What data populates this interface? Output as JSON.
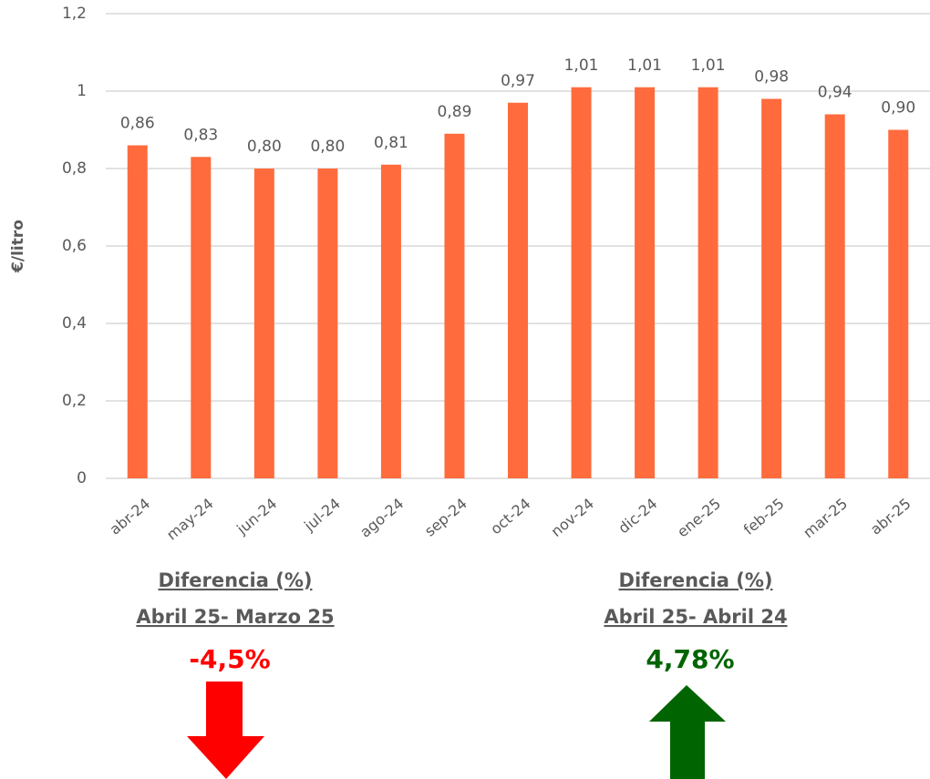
{
  "chart_data": {
    "type": "bar",
    "y_label": "€/litro",
    "categories": [
      "abr-24",
      "may-24",
      "jun-24",
      "jul-24",
      "ago-24",
      "sep-24",
      "oct-24",
      "nov-24",
      "dic-24",
      "ene-25",
      "feb-25",
      "mar-25",
      "abr-25"
    ],
    "values": [
      0.86,
      0.83,
      0.8,
      0.8,
      0.81,
      0.89,
      0.97,
      1.01,
      1.01,
      1.01,
      0.98,
      0.94,
      0.9
    ],
    "value_labels": [
      "0,86",
      "0,83",
      "0,80",
      "0,80",
      "0,81",
      "0,89",
      "0,97",
      "1,01",
      "1,01",
      "1,01",
      "0,98",
      "0,94",
      "0,90"
    ],
    "color": "#ff6b3d",
    "ylim": [
      0,
      1.2
    ],
    "yticks": [
      0,
      {
        "value": 0.2,
        "label": "0,2"
      },
      {
        "value": 0.4,
        "label": "0,4"
      },
      {
        "value": 0.6,
        "label": "0,6"
      },
      {
        "value": 0.8,
        "label": "0,8"
      },
      1,
      {
        "value": 1.2,
        "label": "1,2"
      }
    ],
    "grid": true,
    "annotations": [
      {
        "title": "Diferencia (%)",
        "subtitle": "Abril 25- Marzo 25",
        "value": "-4,5%"
      },
      {
        "title": "Diferencia (%)",
        "subtitle": "Abril 25- Abril 24",
        "value": "4,78%"
      }
    ]
  }
}
